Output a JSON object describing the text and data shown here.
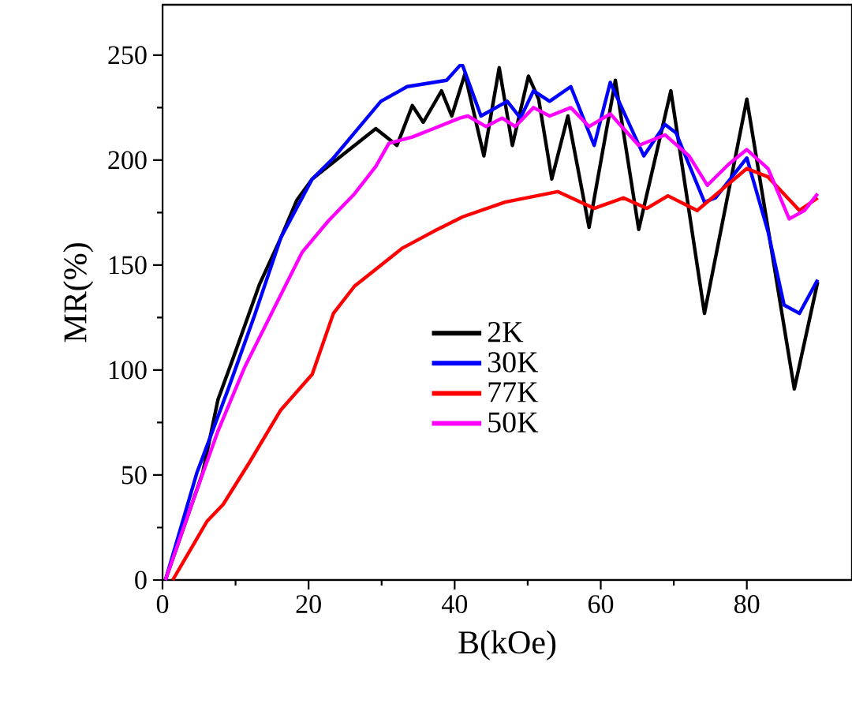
{
  "chart_data": {
    "type": "line",
    "xlabel": "B(kOe)",
    "ylabel": "MR(%)",
    "xlim": [
      0,
      94.4
    ],
    "ylim": [
      0,
      274
    ],
    "xticks": [
      0,
      20,
      40,
      60,
      80
    ],
    "yticks": [
      0,
      50,
      100,
      150,
      200,
      250
    ],
    "legend": "center",
    "line_style": "solid",
    "marker": "none",
    "series": [
      {
        "name": "2K",
        "color": "#000000",
        "x": [
          0.4,
          5.5,
          7.6,
          9.7,
          13.3,
          16.2,
          18.4,
          20.5,
          23.4,
          26.3,
          29.2,
          32.1,
          34.2,
          35.7,
          38.2,
          39.6,
          41.4,
          44,
          46.1,
          47.9,
          50.1,
          51.5,
          53.3,
          55.5,
          58.4,
          62,
          65.2,
          69.6,
          74.2,
          80,
          86.5,
          89.7
        ],
        "values": [
          0,
          51,
          86,
          106,
          141,
          163,
          181,
          191,
          199,
          207,
          215,
          207,
          226,
          218,
          233,
          221,
          241,
          202,
          244,
          207,
          240,
          229,
          191,
          221,
          168,
          238,
          167,
          233,
          127,
          229,
          91,
          142
        ]
      },
      {
        "name": "30K",
        "color": "#0000ff",
        "x": [
          0.4,
          4.7,
          9,
          12.6,
          16.2,
          20.5,
          23.4,
          27,
          29.9,
          33.5,
          38.9,
          40.7,
          41.1,
          43.6,
          47.2,
          49,
          50.8,
          53,
          55.9,
          59.1,
          61.3,
          65.9,
          68.8,
          70.3,
          74.2,
          75.7,
          80,
          82.9,
          85.1,
          87.2,
          89.7
        ],
        "values": [
          0,
          51,
          91,
          126,
          163,
          191,
          201,
          216,
          228,
          235,
          238,
          245,
          245,
          221,
          228,
          220,
          233,
          228,
          235,
          207,
          237,
          202,
          217,
          213,
          180,
          182,
          201,
          166,
          131,
          127,
          143
        ]
      },
      {
        "name": "77K",
        "color": "#ff0000",
        "x": [
          1.4,
          6.1,
          8.3,
          11.9,
          16.2,
          20.5,
          23.4,
          26.3,
          29.2,
          32.8,
          37.1,
          41.1,
          46.9,
          54.1,
          59.1,
          63.1,
          66.3,
          69.2,
          73.2,
          80,
          82.9,
          87.2,
          89.7
        ],
        "values": [
          0,
          28,
          36,
          56,
          81,
          98,
          127,
          140,
          148,
          158,
          166,
          173,
          180,
          185,
          177,
          182,
          177,
          183,
          176,
          196,
          192,
          176,
          182
        ]
      },
      {
        "name": "50K",
        "color": "#ff00ff",
        "x": [
          0.4,
          4,
          7.6,
          11.2,
          15.5,
          19.1,
          22.7,
          26.3,
          29.2,
          31,
          34.2,
          37.1,
          40.7,
          41.8,
          44.3,
          46.5,
          48.3,
          50.8,
          53,
          55.9,
          58.4,
          61.3,
          65.2,
          68.8,
          72.1,
          74.6,
          77.5,
          80,
          82.9,
          85.8,
          87.9,
          89.7
        ],
        "values": [
          0,
          36,
          71,
          101,
          131,
          156,
          171,
          184,
          197,
          208,
          211,
          215,
          220,
          221,
          216,
          220,
          216,
          225,
          221,
          225,
          216,
          222,
          207,
          212,
          202,
          188,
          198,
          205,
          196,
          172,
          176,
          184
        ]
      }
    ]
  }
}
